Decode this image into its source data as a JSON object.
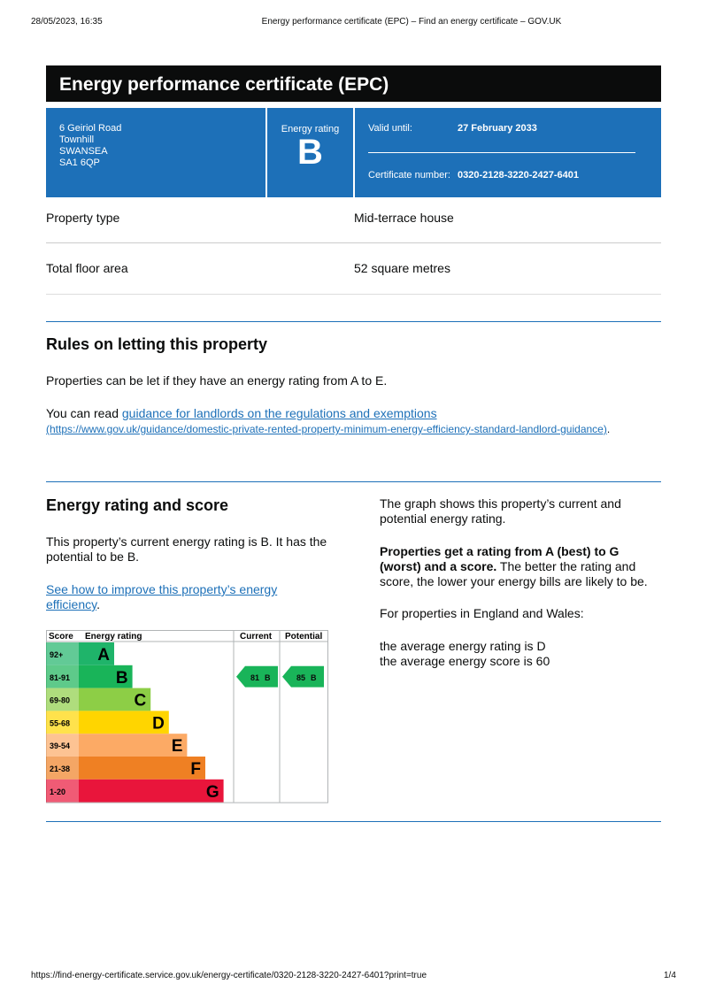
{
  "print_header": {
    "date": "28/05/2023, 16:35",
    "title": "Energy performance certificate (EPC) – Find an energy certificate – GOV.UK"
  },
  "header": {
    "title": "Energy performance certificate (EPC)"
  },
  "address": [
    "6 Geiriol Road",
    "Townhill",
    "SWANSEA",
    "SA1 6QP"
  ],
  "rating_box": {
    "label": "Energy rating",
    "rating": "B"
  },
  "validity": {
    "label": "Valid until:",
    "date": "27 February 2033",
    "cert_label": "Certificate number:",
    "cert_number": "0320-2128-3220-2427-6401"
  },
  "summary": {
    "rows": [
      [
        "Property type",
        "Mid-terrace house"
      ],
      [
        "Total floor area",
        "52 square metres"
      ]
    ]
  },
  "letting": {
    "title": "Rules on letting this property",
    "text": "Properties can be let if they have an energy rating from A to E.",
    "read_prefix": "You can read ",
    "link": "guidance for landlords on the regulations and exemptions",
    "url": "(https://www.gov.uk/guidance/domestic-private-rented-property-minimum-energy-efficiency-standard-landlord-guidance)",
    "suffix": "."
  },
  "rating_section": {
    "title": "Energy rating and score",
    "current_text": "This property’s current energy rating is B. It has the potential to be B.",
    "link": "See how to improve this property’s energy efficiency",
    "link_suffix": "."
  },
  "chart": {
    "headers": [
      "Score",
      "Energy rating",
      "Current",
      "Potential"
    ],
    "bands": [
      {
        "score": "92+",
        "letter": "A",
        "color": "#1fb46a"
      },
      {
        "score": "81-91",
        "letter": "B",
        "color": "#19b459"
      },
      {
        "score": "69-80",
        "letter": "C",
        "color": "#8dce46"
      },
      {
        "score": "55-68",
        "letter": "D",
        "color": "#ffd500"
      },
      {
        "score": "39-54",
        "letter": "E",
        "color": "#fcaa65"
      },
      {
        "score": "21-38",
        "letter": "F",
        "color": "#ef8023"
      },
      {
        "score": "1-20",
        "letter": "G",
        "color": "#e9153b"
      }
    ],
    "current": {
      "score": 81,
      "letter": "B"
    },
    "potential": {
      "score": 85,
      "letter": "B"
    }
  },
  "right_column": {
    "graph_text": "The graph shows this property’s current and potential energy rating.",
    "bold": "Properties get a rating from A (best) to G (worst) and a score.",
    "rest": " The better the rating and score, the lower your energy bills are likely to be.",
    "england": "For properties in England and Wales:",
    "avg_rating": "the average energy rating is D",
    "avg_score": "the average energy score is 60"
  },
  "footer": {
    "url": "https://find-energy-certificate.service.gov.uk/energy-certificate/0320-2128-3220-2427-6401?print=true",
    "page": "1/4"
  }
}
